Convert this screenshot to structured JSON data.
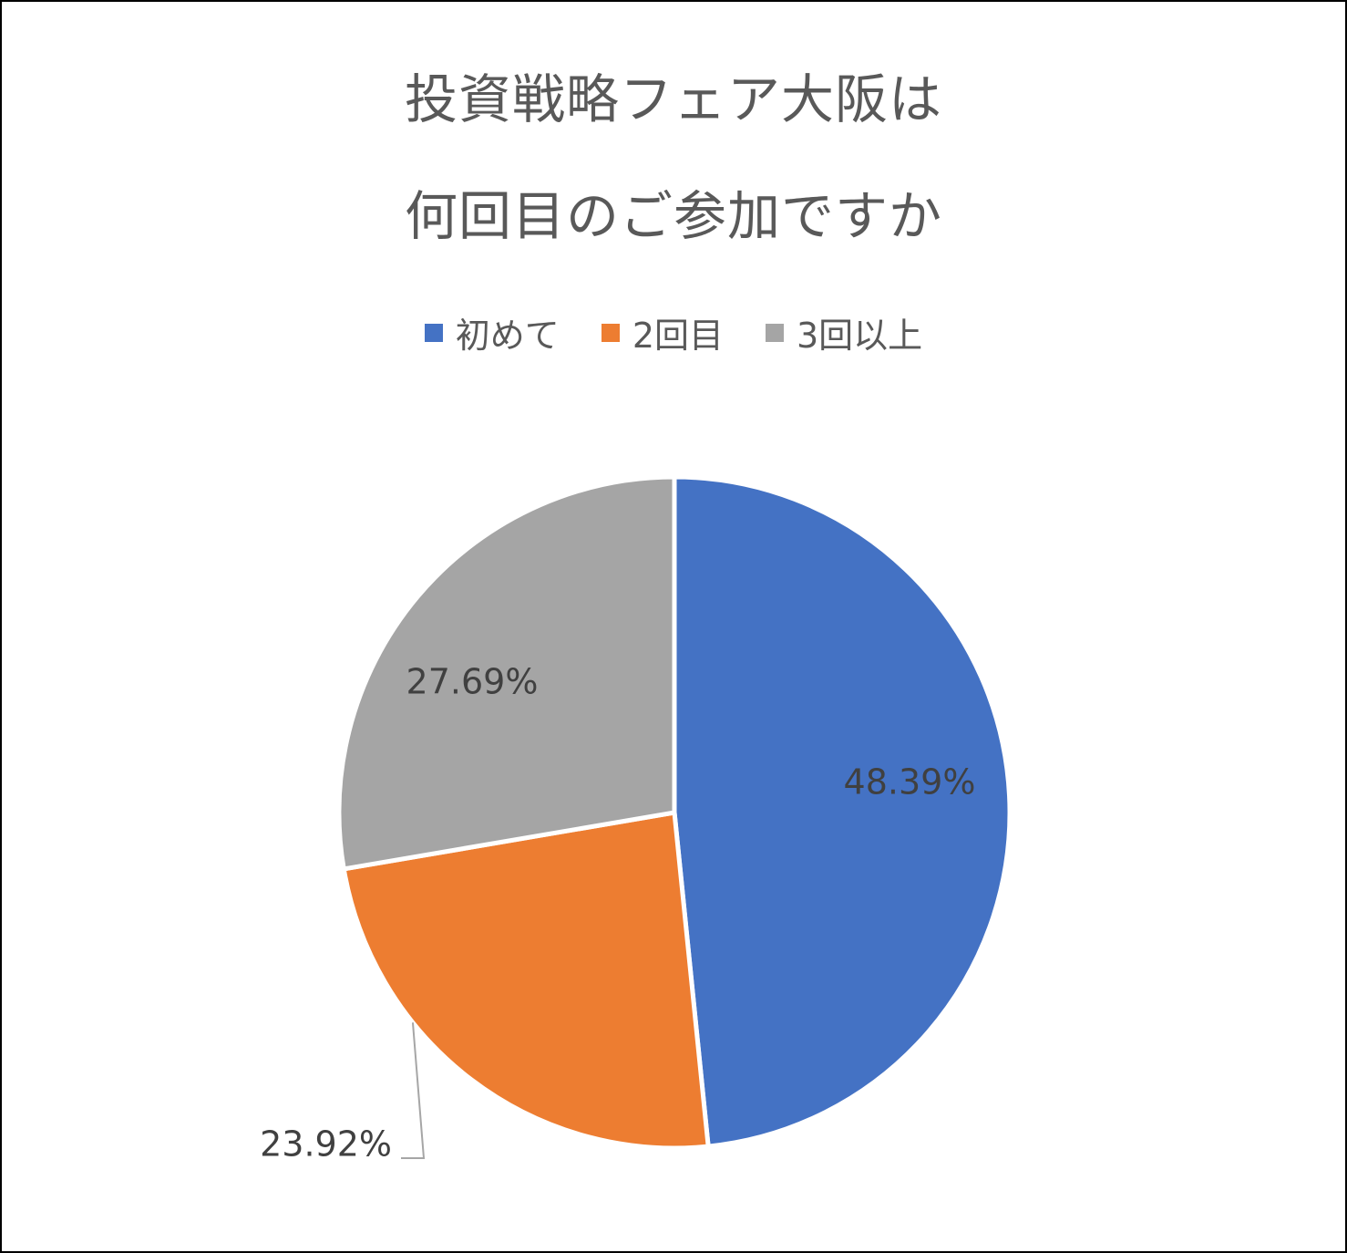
{
  "chart_data": {
    "type": "pie",
    "title_lines": [
      "投資戦略フェア大阪は",
      "何回目のご参加ですか"
    ],
    "categories": [
      "初めて",
      "2回目",
      "3回以上"
    ],
    "values": [
      48.39,
      23.92,
      27.69
    ],
    "value_labels": [
      "48.39%",
      "23.92%",
      "27.69%"
    ],
    "unit": "%",
    "colors": [
      "#4472C4",
      "#ED7D31",
      "#A5A5A5"
    ],
    "legend": "top",
    "start_angle": "12 o'clock, clockwise"
  }
}
